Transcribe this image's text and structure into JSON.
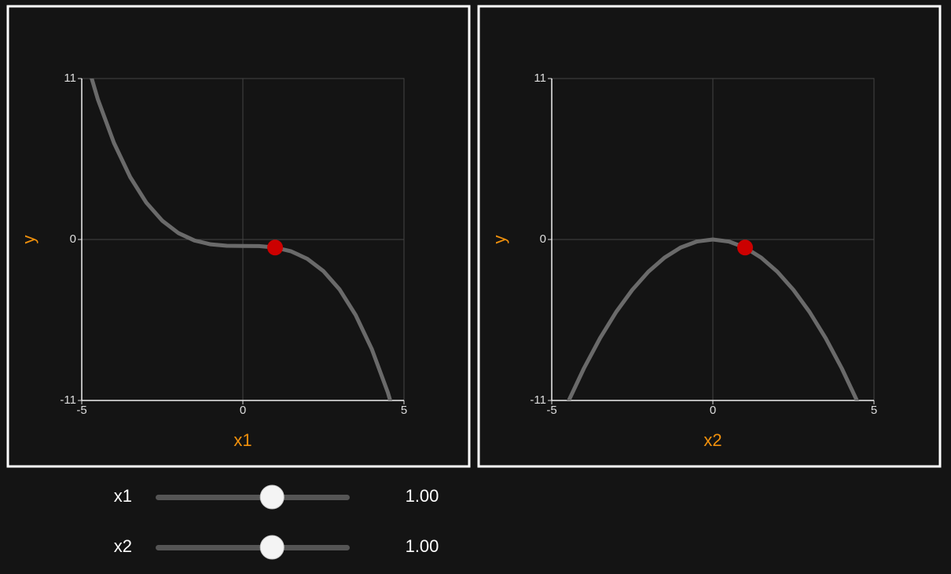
{
  "chart_data": [
    {
      "type": "line",
      "x_label": "x1",
      "y_label": "y",
      "x": [
        -5,
        -4.5,
        -4,
        -3.5,
        -3,
        -2.5,
        -2,
        -1.5,
        -1,
        -0.5,
        0,
        0.5,
        1,
        1.5,
        2,
        2.5,
        3,
        3.5,
        4,
        4.5,
        5
      ],
      "values": [
        13.31,
        9.58,
        6.6,
        4.28,
        2.53,
        1.28,
        0.44,
        -0.07,
        -0.33,
        -0.43,
        -0.44,
        -0.45,
        -0.55,
        -0.81,
        -1.32,
        -2.16,
        -3.41,
        -5.16,
        -7.48,
        -10.46,
        -14.19
      ],
      "color": "#6a6a6a",
      "point": {
        "x": 1,
        "y": -0.55,
        "color": "#cc0000"
      },
      "xlim": [
        -5,
        5
      ],
      "ylim": [
        -11,
        11
      ],
      "xticks": [
        -5,
        0,
        5
      ],
      "yticks": [
        -11,
        0,
        11
      ],
      "grid": true
    },
    {
      "type": "line",
      "x_label": "x2",
      "y_label": "y",
      "x": [
        -5,
        -4.5,
        -4,
        -3.5,
        -3,
        -2.5,
        -2,
        -1.5,
        -1,
        -0.5,
        0,
        0.5,
        1,
        1.5,
        2,
        2.5,
        3,
        3.5,
        4,
        4.5,
        5
      ],
      "values": [
        -13.75,
        -11.14,
        -8.8,
        -6.74,
        -4.95,
        -3.44,
        -2.2,
        -1.24,
        -0.55,
        -0.14,
        0,
        -0.14,
        -0.55,
        -1.24,
        -2.2,
        -3.44,
        -4.95,
        -6.74,
        -8.8,
        -11.14,
        -13.75
      ],
      "color": "#6a6a6a",
      "point": {
        "x": 1,
        "y": -0.55,
        "color": "#cc0000"
      },
      "xlim": [
        -5,
        5
      ],
      "ylim": [
        -11,
        11
      ],
      "xticks": [
        -5,
        0,
        5
      ],
      "yticks": [
        -11,
        0,
        11
      ],
      "grid": true
    }
  ],
  "sliders": [
    {
      "label": "x1",
      "value": 1,
      "value_label": "1.00"
    },
    {
      "label": "x2",
      "value": 1,
      "value_label": "1.00"
    }
  ]
}
